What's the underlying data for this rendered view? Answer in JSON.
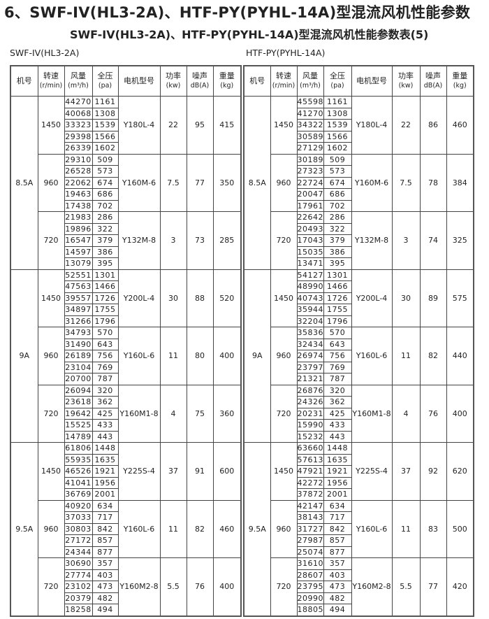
{
  "title": "6、SWF-IV(HL3-2A)、HTF-PY(PYHL-14A)型混流风机性能参数",
  "subtitle": "SWF-IV(HL3-2A)、HTF-PY(PYHL-14A)型混流风机性能参数表(5)",
  "headers": [
    {
      "main": "机号",
      "unit": ""
    },
    {
      "main": "转速",
      "unit": "(r/min)"
    },
    {
      "main": "风量",
      "unit": "(m³/h)"
    },
    {
      "main": "全压",
      "unit": "(pa)"
    },
    {
      "main": "电机型号",
      "unit": ""
    },
    {
      "main": "功率",
      "unit": "(kw)"
    },
    {
      "main": "噪声",
      "unit": "dB(A)"
    },
    {
      "main": "重量",
      "unit": "(kg)"
    }
  ],
  "tables": [
    {
      "label": "SWF-IV(HL3-2A)",
      "groups": [
        {
          "model": "8.5A",
          "speeds": [
            {
              "rpm": "1450",
              "rows": [
                [
                  "44270",
                  "1161"
                ],
                [
                  "40068",
                  "1308"
                ],
                [
                  "33323",
                  "1539"
                ],
                [
                  "29398",
                  "1566"
                ],
                [
                  "26339",
                  "1602"
                ]
              ],
              "motor": "Y180L-4",
              "power": "22",
              "noise": "95",
              "weight": "415"
            },
            {
              "rpm": "960",
              "rows": [
                [
                  "29310",
                  "509"
                ],
                [
                  "26528",
                  "573"
                ],
                [
                  "22062",
                  "674"
                ],
                [
                  "19463",
                  "686"
                ],
                [
                  "17438",
                  "702"
                ]
              ],
              "motor": "Y160M-6",
              "power": "7.5",
              "noise": "77",
              "weight": "350"
            },
            {
              "rpm": "720",
              "rows": [
                [
                  "21983",
                  "286"
                ],
                [
                  "19896",
                  "322"
                ],
                [
                  "16547",
                  "379"
                ],
                [
                  "14597",
                  "386"
                ],
                [
                  "13079",
                  "395"
                ]
              ],
              "motor": "Y132M-8",
              "power": "3",
              "noise": "73",
              "weight": "285"
            }
          ]
        },
        {
          "model": "9A",
          "speeds": [
            {
              "rpm": "1450",
              "rows": [
                [
                  "52551",
                  "1301"
                ],
                [
                  "47563",
                  "1466"
                ],
                [
                  "39557",
                  "1726"
                ],
                [
                  "34897",
                  "1755"
                ],
                [
                  "31266",
                  "1796"
                ]
              ],
              "motor": "Y200L-4",
              "power": "30",
              "noise": "88",
              "weight": "520"
            },
            {
              "rpm": "960",
              "rows": [
                [
                  "34793",
                  "570"
                ],
                [
                  "31490",
                  "643"
                ],
                [
                  "26189",
                  "756"
                ],
                [
                  "23104",
                  "769"
                ],
                [
                  "20700",
                  "787"
                ]
              ],
              "motor": "Y160L-6",
              "power": "11",
              "noise": "80",
              "weight": "400"
            },
            {
              "rpm": "720",
              "rows": [
                [
                  "26094",
                  "320"
                ],
                [
                  "23618",
                  "362"
                ],
                [
                  "19642",
                  "425"
                ],
                [
                  "15525",
                  "433"
                ],
                [
                  "14789",
                  "443"
                ]
              ],
              "motor": "Y160M1-8",
              "power": "4",
              "noise": "75",
              "weight": "360"
            }
          ]
        },
        {
          "model": "9.5A",
          "speeds": [
            {
              "rpm": "1450",
              "rows": [
                [
                  "61806",
                  "1448"
                ],
                [
                  "55935",
                  "1635"
                ],
                [
                  "46526",
                  "1921"
                ],
                [
                  "41041",
                  "1956"
                ],
                [
                  "36769",
                  "2001"
                ]
              ],
              "motor": "Y225S-4",
              "power": "37",
              "noise": "91",
              "weight": "600"
            },
            {
              "rpm": "960",
              "rows": [
                [
                  "40920",
                  "634"
                ],
                [
                  "37033",
                  "717"
                ],
                [
                  "30803",
                  "842"
                ],
                [
                  "27172",
                  "857"
                ],
                [
                  "24344",
                  "877"
                ]
              ],
              "motor": "Y160L-6",
              "power": "11",
              "noise": "82",
              "weight": "460"
            },
            {
              "rpm": "720",
              "rows": [
                [
                  "30690",
                  "357"
                ],
                [
                  "27774",
                  "403"
                ],
                [
                  "23102",
                  "473"
                ],
                [
                  "20379",
                  "482"
                ],
                [
                  "18258",
                  "494"
                ]
              ],
              "motor": "Y160M2-8",
              "power": "5.5",
              "noise": "76",
              "weight": "400"
            }
          ]
        }
      ]
    },
    {
      "label": "HTF-PY(PYHL-14A)",
      "groups": [
        {
          "model": "8.5A",
          "speeds": [
            {
              "rpm": "1450",
              "rows": [
                [
                  "45598",
                  "1161"
                ],
                [
                  "41270",
                  "1308"
                ],
                [
                  "34322",
                  "1539"
                ],
                [
                  "30589",
                  "1566"
                ],
                [
                  "27129",
                  "1602"
                ]
              ],
              "motor": "Y180L-4",
              "power": "22",
              "noise": "86",
              "weight": "460"
            },
            {
              "rpm": "960",
              "rows": [
                [
                  "30189",
                  "509"
                ],
                [
                  "27323",
                  "573"
                ],
                [
                  "22724",
                  "674"
                ],
                [
                  "20047",
                  "686"
                ],
                [
                  "17961",
                  "702"
                ]
              ],
              "motor": "Y160M-6",
              "power": "7.5",
              "noise": "78",
              "weight": "384"
            },
            {
              "rpm": "720",
              "rows": [
                [
                  "22642",
                  "286"
                ],
                [
                  "20493",
                  "322"
                ],
                [
                  "17043",
                  "379"
                ],
                [
                  "15035",
                  "386"
                ],
                [
                  "13471",
                  "395"
                ]
              ],
              "motor": "Y132M-8",
              "power": "3",
              "noise": "74",
              "weight": "325"
            }
          ]
        },
        {
          "model": "9A",
          "speeds": [
            {
              "rpm": "1450",
              "rows": [
                [
                  "54127",
                  "1301"
                ],
                [
                  "48990",
                  "1466"
                ],
                [
                  "40743",
                  "1726"
                ],
                [
                  "35944",
                  "1755"
                ],
                [
                  "32204",
                  "1796"
                ]
              ],
              "motor": "Y200L-4",
              "power": "30",
              "noise": "89",
              "weight": "575"
            },
            {
              "rpm": "960",
              "rows": [
                [
                  "35836",
                  "570"
                ],
                [
                  "32434",
                  "643"
                ],
                [
                  "26974",
                  "756"
                ],
                [
                  "23797",
                  "769"
                ],
                [
                  "21321",
                  "787"
                ]
              ],
              "motor": "Y160L-6",
              "power": "11",
              "noise": "82",
              "weight": "440"
            },
            {
              "rpm": "720",
              "rows": [
                [
                  "26876",
                  "320"
                ],
                [
                  "24326",
                  "362"
                ],
                [
                  "20231",
                  "425"
                ],
                [
                  "15990",
                  "433"
                ],
                [
                  "15232",
                  "443"
                ]
              ],
              "motor": "Y160M1-8",
              "power": "4",
              "noise": "76",
              "weight": "400"
            }
          ]
        },
        {
          "model": "9.5A",
          "speeds": [
            {
              "rpm": "1450",
              "rows": [
                [
                  "63660",
                  "1448"
                ],
                [
                  "57613",
                  "1635"
                ],
                [
                  "47921",
                  "1921"
                ],
                [
                  "42272",
                  "1956"
                ],
                [
                  "37872",
                  "2001"
                ]
              ],
              "motor": "Y225S-4",
              "power": "37",
              "noise": "92",
              "weight": "620"
            },
            {
              "rpm": "960",
              "rows": [
                [
                  "42147",
                  "634"
                ],
                [
                  "38143",
                  "717"
                ],
                [
                  "31727",
                  "842"
                ],
                [
                  "27987",
                  "857"
                ],
                [
                  "25074",
                  "877"
                ]
              ],
              "motor": "Y160L-6",
              "power": "11",
              "noise": "83",
              "weight": "500"
            },
            {
              "rpm": "720",
              "rows": [
                [
                  "31610",
                  "357"
                ],
                [
                  "28607",
                  "403"
                ],
                [
                  "23795",
                  "473"
                ],
                [
                  "20990",
                  "482"
                ],
                [
                  "18805",
                  "494"
                ]
              ],
              "motor": "Y160M2-8",
              "power": "5.5",
              "noise": "77",
              "weight": "420"
            }
          ]
        }
      ]
    }
  ]
}
